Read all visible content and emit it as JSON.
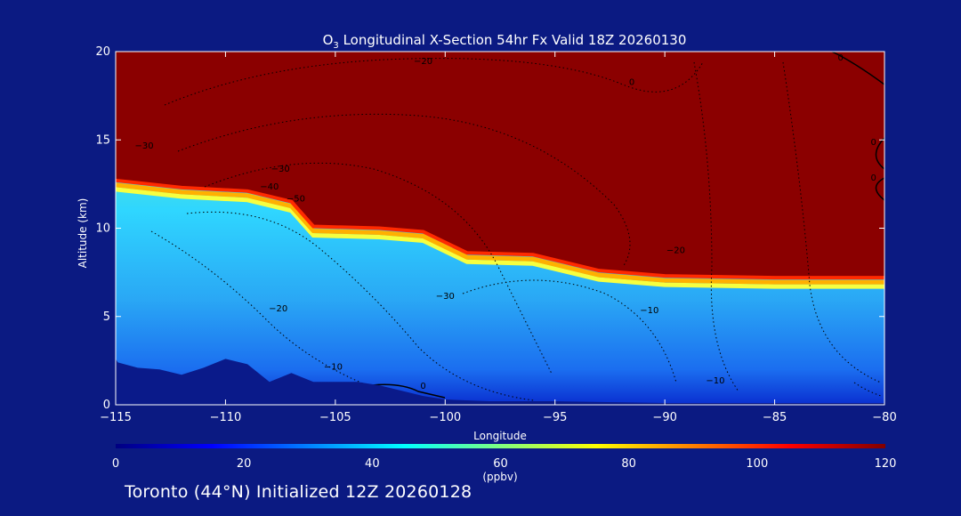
{
  "colors": {
    "background": "#0b1a82",
    "stratosphere": "#8b0000",
    "terrain": "#0a1a8a",
    "contour": "#000000",
    "text": "#ffffff"
  },
  "chart_data": {
    "type": "heatmap",
    "title_prefix": "O",
    "title_subscript": "3",
    "title_rest": " Longitudinal X-Section 54hr  Fx Valid 18Z 20260130",
    "xlabel": "Longitude",
    "ylabel": "Altitude (km)",
    "xlim": [
      -115,
      -80
    ],
    "ylim": [
      0,
      20
    ],
    "xticks": [
      -115,
      -110,
      -105,
      -100,
      -95,
      -90,
      -85,
      -80
    ],
    "xtick_labels": [
      "−115",
      "−110",
      "−105",
      "−100",
      "−95",
      "−90",
      "−85",
      "−80"
    ],
    "yticks": [
      0,
      5,
      10,
      15,
      20
    ],
    "ytick_labels": [
      "0",
      "5",
      "10",
      "15",
      "20"
    ],
    "colorbar": {
      "label": "(ppbv)",
      "min": 0,
      "max": 120,
      "ticks": [
        0,
        20,
        40,
        60,
        80,
        100,
        120
      ],
      "tick_labels": [
        "0",
        "20",
        "40",
        "60",
        "80",
        "100",
        "120"
      ],
      "colormap": [
        "#000080",
        "#0000ff",
        "#0080ff",
        "#00ffff",
        "#80ff80",
        "#ffff00",
        "#ff8000",
        "#ff0000",
        "#800000"
      ]
    },
    "tropopause_height_km": [
      [
        -115,
        12.7
      ],
      [
        -112,
        12.3
      ],
      [
        -109,
        12.1
      ],
      [
        -107,
        11.5
      ],
      [
        -106,
        10.1
      ],
      [
        -103,
        10.0
      ],
      [
        -101,
        9.8
      ],
      [
        -99,
        8.6
      ],
      [
        -96,
        8.5
      ],
      [
        -93,
        7.6
      ],
      [
        -90,
        7.3
      ],
      [
        -85,
        7.2
      ],
      [
        -80,
        7.2
      ]
    ],
    "terrain_height_km": [
      [
        -115,
        2.6
      ],
      [
        -114.9,
        2.4
      ],
      [
        -114,
        2.1
      ],
      [
        -113,
        2.0
      ],
      [
        -112,
        1.7
      ],
      [
        -111,
        2.1
      ],
      [
        -110,
        2.6
      ],
      [
        -109,
        2.3
      ],
      [
        -108,
        1.3
      ],
      [
        -107,
        1.8
      ],
      [
        -106,
        1.3
      ],
      [
        -104,
        1.3
      ],
      [
        -103,
        1.1
      ],
      [
        -102,
        0.8
      ],
      [
        -101,
        0.5
      ],
      [
        -100,
        0.3
      ],
      [
        -98,
        0.2
      ],
      [
        -95,
        0.2
      ],
      [
        -90,
        0.1
      ],
      [
        -85,
        0.1
      ],
      [
        -80,
        0.1
      ]
    ],
    "contour_labels": [
      {
        "text": "−20",
        "lon": -101,
        "alt": 19.3
      },
      {
        "text": "0",
        "lon": -91.5,
        "alt": 18.1
      },
      {
        "text": "0",
        "lon": -82,
        "alt": 19.5
      },
      {
        "text": "−30",
        "lon": -113.7,
        "alt": 14.5
      },
      {
        "text": "−30",
        "lon": -107.5,
        "alt": 13.2
      },
      {
        "text": "−40",
        "lon": -108,
        "alt": 12.2
      },
      {
        "text": "−50",
        "lon": -106.8,
        "alt": 11.5
      },
      {
        "text": "−20",
        "lon": -89.5,
        "alt": 8.6
      },
      {
        "text": "−30",
        "lon": -100,
        "alt": 6.0
      },
      {
        "text": "−20",
        "lon": -107.6,
        "alt": 5.3
      },
      {
        "text": "−10",
        "lon": -90.7,
        "alt": 5.2
      },
      {
        "text": "−10",
        "lon": -105.1,
        "alt": 2.0
      },
      {
        "text": "0",
        "lon": -101,
        "alt": 0.9
      },
      {
        "text": "−10",
        "lon": -87.7,
        "alt": 1.2
      },
      {
        "text": "0",
        "lon": -80.5,
        "alt": 14.7
      },
      {
        "text": "0",
        "lon": -80.5,
        "alt": 12.7
      }
    ]
  },
  "footer": "Toronto (44°N) Initialized 12Z 20260128"
}
